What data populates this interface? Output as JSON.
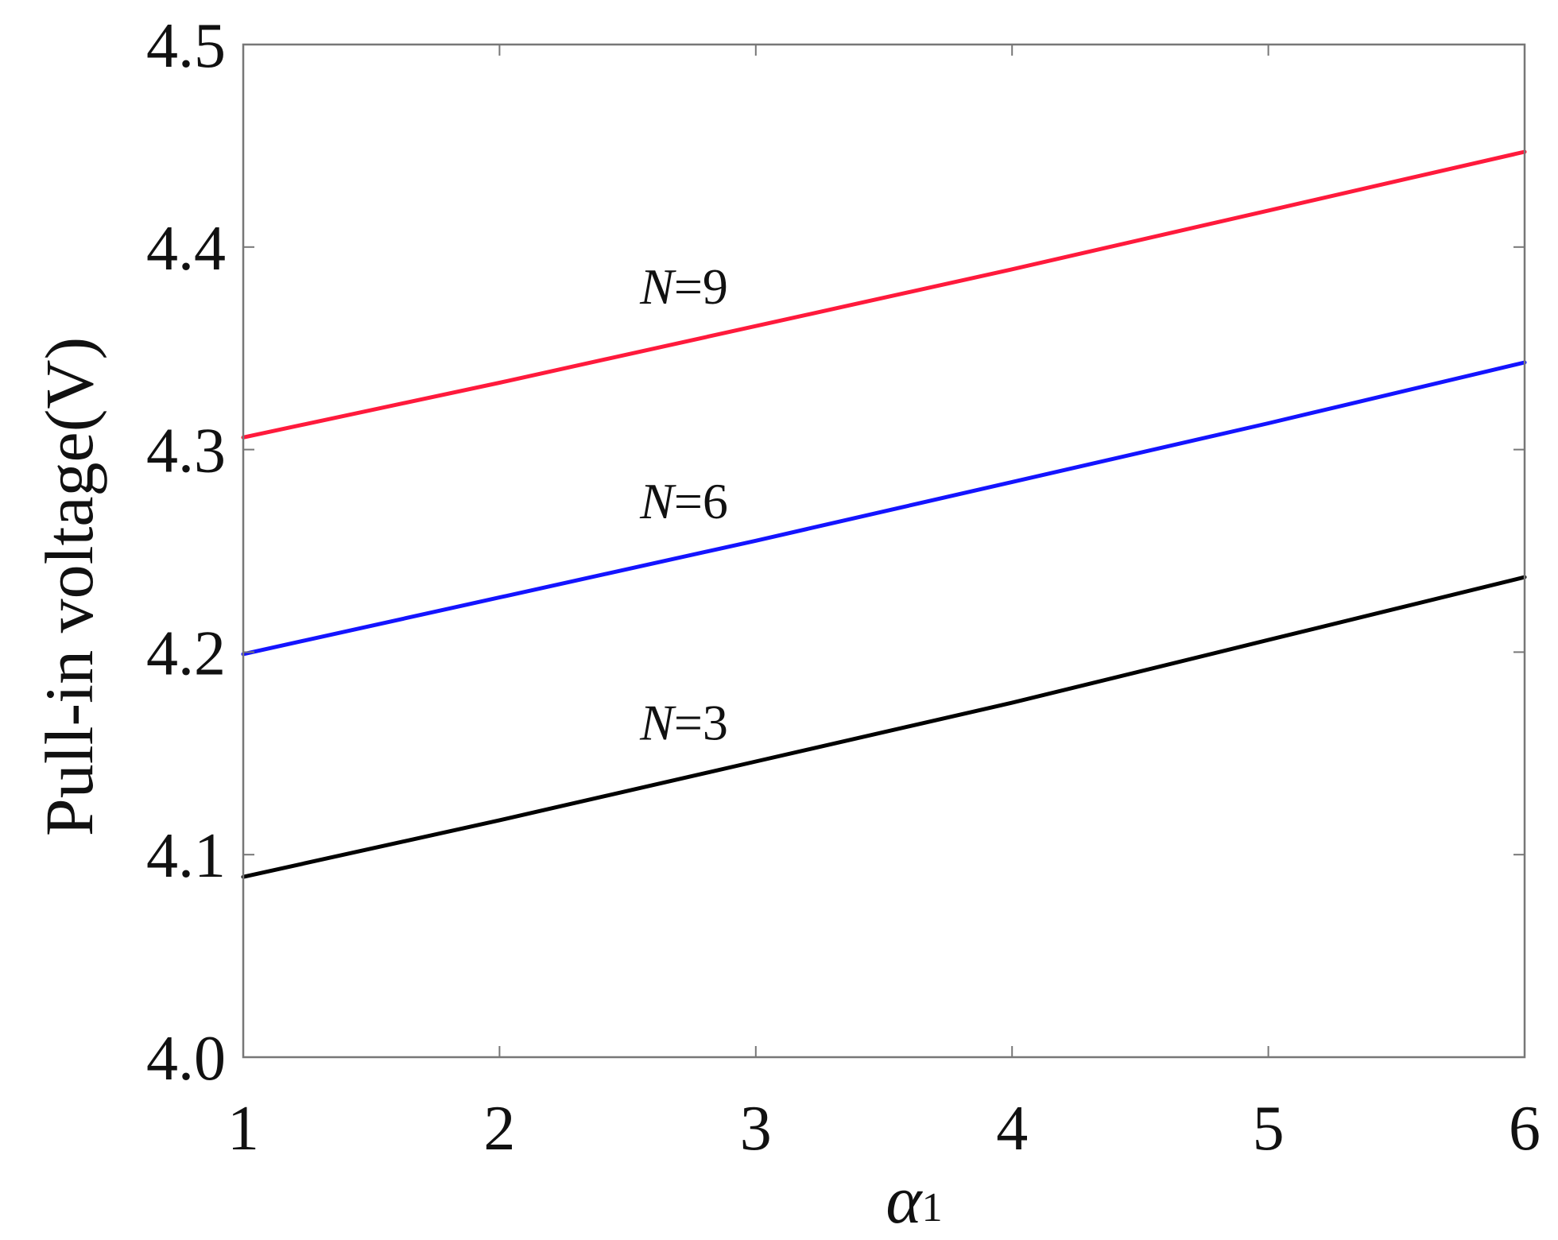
{
  "chart_data": {
    "type": "line",
    "title": "",
    "xlabel_symbol": "α",
    "xlabel_subscript": "1",
    "ylabel": "Pull-in voltage(V)",
    "xlim": [
      1,
      6
    ],
    "ylim": [
      4.0,
      4.5
    ],
    "x_ticks": [
      "1",
      "2",
      "3",
      "4",
      "5",
      "6"
    ],
    "y_ticks": [
      "4.0",
      "4.1",
      "4.2",
      "4.3",
      "4.4",
      "4.5"
    ],
    "grid": false,
    "legend": "none",
    "x": [
      1,
      2,
      3,
      4,
      5,
      6
    ],
    "series": [
      {
        "name": "N=9",
        "label_var": "N",
        "label_rest": "=9",
        "color": "#ff1a3c",
        "values": [
          4.306,
          4.333,
          4.361,
          4.389,
          4.418,
          4.447
        ]
      },
      {
        "name": "N=6",
        "label_var": "N",
        "label_rest": "=6",
        "color": "#1414ff",
        "values": [
          4.199,
          4.227,
          4.255,
          4.284,
          4.313,
          4.343
        ]
      },
      {
        "name": "N=3",
        "label_var": "N",
        "label_rest": "=3",
        "color": "#000000",
        "values": [
          4.089,
          4.117,
          4.146,
          4.175,
          4.206,
          4.237
        ]
      }
    ]
  }
}
